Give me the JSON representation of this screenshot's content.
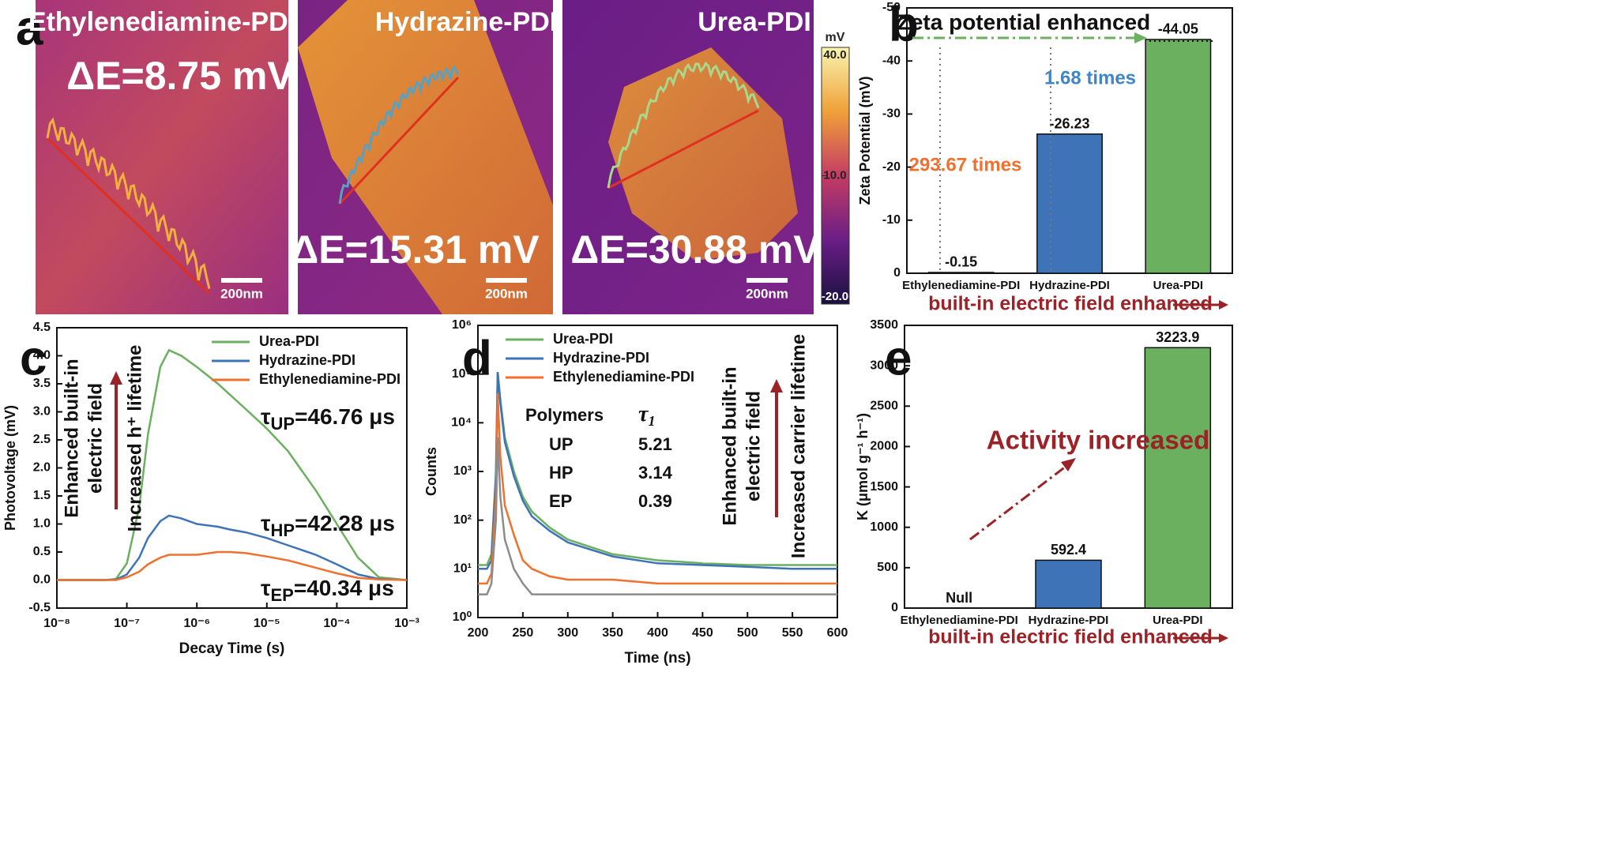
{
  "panel_labels": [
    "a",
    "b",
    "c",
    "d",
    "e"
  ],
  "afm": {
    "images": [
      {
        "title": "Ethylenediamine-PDI",
        "delta": "ΔE=8.75 mV",
        "scale": "200nm"
      },
      {
        "title": "Hydrazine-PDI",
        "delta": "ΔE=15.31 mV",
        "scale": "200nm"
      },
      {
        "title": "Urea-PDI",
        "delta": "ΔE=30.88 mV",
        "scale": "200nm"
      }
    ],
    "colorbar": {
      "unit": "mV",
      "lim": [
        -20,
        40
      ],
      "ticks": [
        {
          "value": 40,
          "label": "40.0"
        },
        {
          "value": 10,
          "label": "10.0"
        },
        {
          "value": -20,
          "label": "-20.0"
        }
      ]
    }
  },
  "chart_data": [
    {
      "type": "bar",
      "ylabel": "Zeta Potential (mV)",
      "categories": [
        "Ethylenediamine-PDI",
        "Hydrazine-PDI",
        "Urea-PDI"
      ],
      "values": [
        -0.15,
        -26.23,
        -44.05
      ],
      "colors": [
        "#3f73b8",
        "#3f73b8",
        "#6ab05e"
      ],
      "ylim": [
        0,
        -50
      ],
      "yticks": [
        0,
        -10,
        -20,
        -30,
        -40,
        -50
      ],
      "annotations": [
        "Zeta potential enhanced",
        "1.68 times",
        "293.67 times"
      ],
      "footer": "built-in electric field enhanced"
    },
    {
      "type": "line",
      "xlabel": "Decay Time (s)",
      "ylabel": "Photovoltage (mV)",
      "xlog": true,
      "x": [
        1e-08,
        3e-08,
        5e-08,
        7e-08,
        1e-07,
        1.5e-07,
        2e-07,
        3e-07,
        4e-07,
        6e-07,
        1e-06,
        2e-06,
        3e-06,
        5e-06,
        1e-05,
        2e-05,
        5e-05,
        0.0001,
        0.0002,
        0.0004,
        0.001
      ],
      "series": [
        {
          "name": "Urea-PDI",
          "color": "#6ab05e",
          "values": [
            0,
            0,
            0,
            0.02,
            0.3,
            1.3,
            2.6,
            3.8,
            4.1,
            4.0,
            3.8,
            3.5,
            3.3,
            3.05,
            2.7,
            2.3,
            1.6,
            1.0,
            0.4,
            0.05,
            0
          ]
        },
        {
          "name": "Hydrazine-PDI",
          "color": "#3f73b8",
          "values": [
            0,
            0,
            0,
            0.01,
            0.1,
            0.4,
            0.75,
            1.05,
            1.15,
            1.1,
            1.0,
            0.95,
            0.9,
            0.85,
            0.75,
            0.62,
            0.45,
            0.28,
            0.1,
            0.02,
            0
          ]
        },
        {
          "name": "Ethylenediamine-PDI",
          "color": "#f0702e",
          "values": [
            0,
            0,
            0,
            0,
            0.05,
            0.15,
            0.28,
            0.4,
            0.45,
            0.45,
            0.45,
            0.5,
            0.5,
            0.48,
            0.42,
            0.35,
            0.22,
            0.12,
            0.04,
            0.01,
            0
          ]
        }
      ],
      "xlim": [
        1e-08,
        0.001
      ],
      "xticks": [
        {
          "value": 1e-08,
          "label": "10⁻⁸"
        },
        {
          "value": 1e-07,
          "label": "10⁻⁷"
        },
        {
          "value": 1e-06,
          "label": "10⁻⁶"
        },
        {
          "value": 1e-05,
          "label": "10⁻⁵"
        },
        {
          "value": 0.0001,
          "label": "10⁻⁴"
        },
        {
          "value": 0.001,
          "label": "10⁻³"
        }
      ],
      "ylim": [
        -0.5,
        4.5
      ],
      "yticks": [
        -0.5,
        {
          "value": 0,
          "label": "0.0"
        },
        0.5,
        {
          "value": 1,
          "label": "1.0"
        },
        1.5,
        {
          "value": 2,
          "label": "2.0"
        },
        2.5,
        {
          "value": 3,
          "label": "3.0"
        },
        3.5,
        {
          "value": 4,
          "label": "4.0"
        },
        4.5
      ],
      "legend": "upper right",
      "lifetimes": [
        {
          "symbol": "τ",
          "sub": "UP",
          "text": "=46.76 μs"
        },
        {
          "symbol": "τ",
          "sub": "HP",
          "text": "=42.28 μs"
        },
        {
          "symbol": "τ",
          "sub": "EP",
          "text": "=40.34 μs"
        }
      ],
      "vertical_labels": [
        [
          "Enhanced built-in",
          "electric field"
        ],
        [
          "Increased h⁺ lifetime"
        ]
      ]
    },
    {
      "type": "line",
      "xlabel": "Time (ns)",
      "ylabel": "Counts",
      "ylog": true,
      "x": [
        200,
        210,
        215,
        220,
        222,
        225,
        230,
        240,
        250,
        260,
        280,
        300,
        350,
        400,
        450,
        500,
        550,
        600
      ],
      "series": [
        {
          "name": "Urea-PDI",
          "color": "#6ab05e",
          "values": [
            12,
            12,
            20,
            1000,
            110000,
            30000,
            5000,
            1000,
            300,
            150,
            70,
            40,
            20,
            15,
            13,
            12,
            12,
            12
          ]
        },
        {
          "name": "Hydrazine-PDI",
          "color": "#3f73b8",
          "values": [
            10,
            10,
            15,
            800,
            110000,
            25000,
            4000,
            800,
            250,
            120,
            60,
            35,
            18,
            13,
            12,
            11,
            10,
            10
          ]
        },
        {
          "name": "Ethylenediamine-PDI",
          "color": "#f0702e",
          "values": [
            5,
            5,
            8,
            300,
            40000,
            2000,
            200,
            50,
            15,
            10,
            7,
            6,
            6,
            5,
            5,
            5,
            5,
            5
          ]
        },
        {
          "color": "#8c8c8c",
          "values": [
            3,
            3,
            5,
            100,
            5000,
            300,
            40,
            10,
            5,
            3,
            3,
            3,
            3,
            3,
            3,
            3,
            3,
            3
          ]
        }
      ],
      "xlim": [
        200,
        600
      ],
      "xticks": [
        200,
        250,
        300,
        350,
        400,
        450,
        500,
        550,
        600
      ],
      "ylim": [
        1,
        1000000
      ],
      "yticks": [
        {
          "value": 1,
          "label": "10⁰"
        },
        {
          "value": 10,
          "label": "10¹"
        },
        {
          "value": 100,
          "label": "10²"
        },
        {
          "value": 1000,
          "label": "10³"
        },
        {
          "value": 10000,
          "label": "10⁴"
        },
        {
          "value": 100000,
          "label": "10⁵"
        },
        {
          "value": 1000000,
          "label": "10⁶"
        }
      ],
      "legend": "upper left",
      "table": {
        "header": [
          "Polymers",
          {
            "symbol": "τ",
            "sub": "1"
          }
        ],
        "rows": [
          [
            "UP",
            "5.21"
          ],
          [
            "HP",
            "3.14"
          ],
          [
            "EP",
            "0.39"
          ]
        ]
      },
      "vertical_labels": [
        [
          "Enhanced built-in",
          "electric field"
        ],
        [
          "Increased carrier lifetime"
        ]
      ]
    },
    {
      "type": "bar",
      "ylabel": "K (μmol g⁻¹ h⁻¹)",
      "categories": [
        "Ethylenediamine-PDI",
        "Hydrazine-PDI",
        "Urea-PDI"
      ],
      "values": [
        null,
        592.4,
        3223.9
      ],
      "value_labels": [
        "Null",
        "592.4",
        "3223.9"
      ],
      "colors": [
        "#3f73b8",
        "#3f73b8",
        "#6ab05e"
      ],
      "ylim": [
        0,
        3500
      ],
      "yticks": [
        0,
        500,
        1000,
        1500,
        2000,
        2500,
        3000,
        3500
      ],
      "annotations": [
        "Activity increased"
      ],
      "footer": "built-in electric field enhanced"
    }
  ]
}
